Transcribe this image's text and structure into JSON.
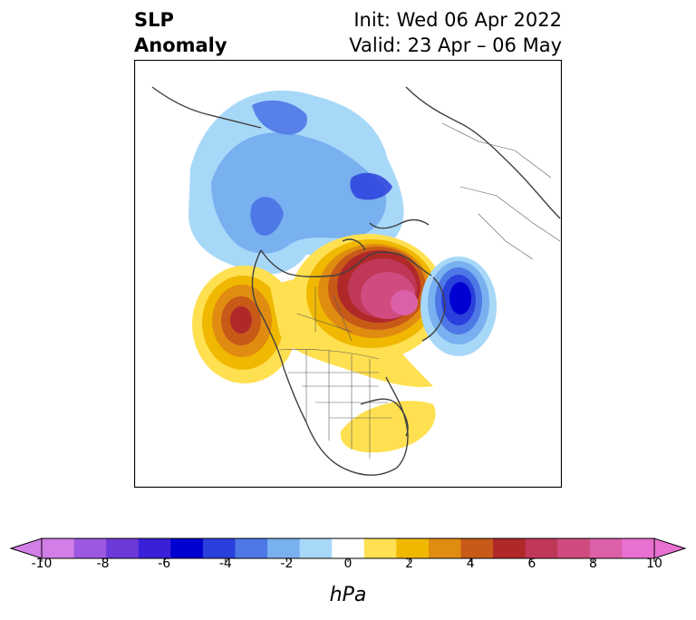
{
  "title": {
    "left_line1": "SLP",
    "left_line2": "Anomaly",
    "right_line1": "Init: Wed 06 Apr 2022",
    "right_line2": "Valid: 23 Apr – 06 May"
  },
  "colorbar": {
    "unit": "hPa",
    "ticks": [
      "-10",
      "-8",
      "-6",
      "-4",
      "-2",
      "0",
      "2",
      "4",
      "6",
      "8",
      "10"
    ],
    "colors": [
      "#d27ee8",
      "#9c58e0",
      "#6c3ad8",
      "#3a20d8",
      "#0000d0",
      "#2a40dc",
      "#4e78e6",
      "#78b0f0",
      "#a8d8f8",
      "#ffffff",
      "#ffe050",
      "#f0b800",
      "#e08c10",
      "#c85a18",
      "#b02828",
      "#c03858",
      "#d04c80",
      "#dc60a8",
      "#e870d0"
    ],
    "extend_low": "#d27ee8",
    "extend_high": "#e870d0"
  },
  "map": {
    "projection": "polar stereographic (North America centered)",
    "features": [
      "coastlines",
      "country borders",
      "US state borders",
      "Canadian province borders"
    ],
    "anomalies": [
      {
        "region": "Gulf of Alaska",
        "sign": "positive",
        "peak_hPa": 6
      },
      {
        "region": "Hudson Bay / Canadian Arctic / Greenland",
        "sign": "positive",
        "peak_hPa": 8
      },
      {
        "region": "Southeast US",
        "sign": "positive",
        "peak_hPa": 2
      },
      {
        "region": "North Atlantic (east of Greenland)",
        "sign": "negative",
        "peak_hPa": -6
      },
      {
        "region": "Siberia / Eurasia",
        "sign": "negative",
        "peak_hPa": -4
      }
    ]
  }
}
